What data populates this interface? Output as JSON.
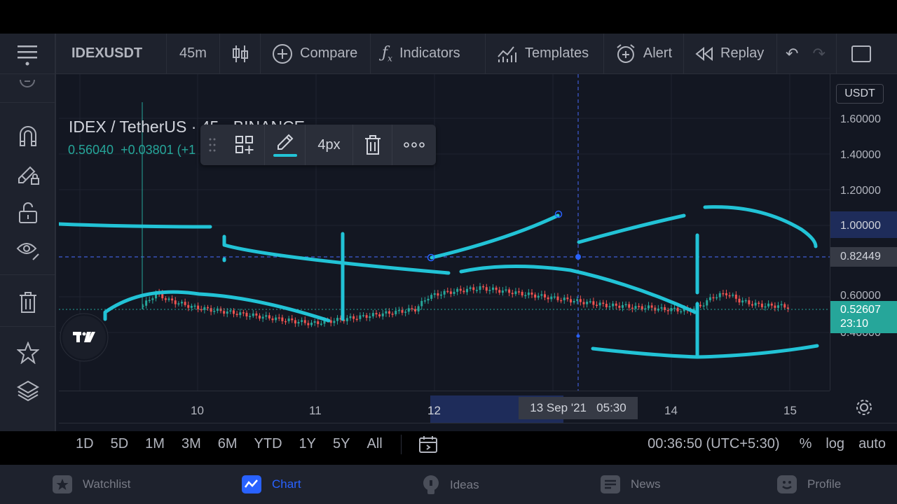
{
  "topbar": {
    "symbol": "IDEXUSDT",
    "interval": "45m",
    "compare": "Compare",
    "indicators": "Indicators",
    "templates": "Templates",
    "alert": "Alert",
    "replay": "Replay"
  },
  "legend": {
    "title": "IDEX / TetherUS · 45 · BINANCE",
    "price": "0.56040",
    "change": "+0.03801 (+1"
  },
  "drawing_toolbar": {
    "width_label": "4px"
  },
  "price_axis": {
    "currency": "USDT",
    "labels": [
      "1.60000",
      "1.40000",
      "1.20000",
      "1.00000",
      "0.60000",
      "0.40000"
    ],
    "crosshair_price": "0.82449",
    "last_price": "0.52607",
    "countdown": "23:10"
  },
  "time_axis": {
    "labels": [
      "10",
      "11",
      "12",
      "14",
      "15"
    ],
    "crosshair_time": "13 Sep '21   05:30"
  },
  "range_bar": {
    "ranges": [
      "1D",
      "5D",
      "1M",
      "3M",
      "6M",
      "YTD",
      "1Y",
      "5Y",
      "All"
    ],
    "clock": "00:36:50 (UTC+5:30)",
    "percent": "%",
    "log": "log",
    "auto": "auto"
  },
  "bottom_nav": {
    "watchlist": "Watchlist",
    "chart": "Chart",
    "ideas": "Ideas",
    "news": "News",
    "profile": "Profile"
  },
  "colors": {
    "background": "#131722",
    "panel": "#1e222d",
    "drawing": "#22c3d6",
    "up": "#26a69a",
    "down": "#ef5350",
    "accent": "#2962ff"
  },
  "chart_data": {
    "type": "candlestick",
    "symbol": "IDEX / TetherUS",
    "exchange": "BINANCE",
    "interval": "45",
    "x_ticks": [
      "10",
      "11",
      "12",
      "14",
      "15"
    ],
    "y_ticks": [
      0.4,
      0.6,
      1.0,
      1.2,
      1.4,
      1.6
    ],
    "close_series": [
      0.55,
      0.62,
      0.58,
      0.56,
      0.54,
      0.53,
      0.52,
      0.51,
      0.5,
      0.49,
      0.48,
      0.47,
      0.46,
      0.45,
      0.46,
      0.47,
      0.48,
      0.49,
      0.5,
      0.51,
      0.52,
      0.53,
      0.6,
      0.62,
      0.63,
      0.64,
      0.65,
      0.64,
      0.63,
      0.62,
      0.61,
      0.6,
      0.59,
      0.58,
      0.57,
      0.56,
      0.55,
      0.55,
      0.54,
      0.54,
      0.53,
      0.53,
      0.52,
      0.55,
      0.6,
      0.62,
      0.58,
      0.56,
      0.55,
      0.55,
      0.54
    ],
    "last_price": 0.52607,
    "crosshair_price": 0.82449
  }
}
